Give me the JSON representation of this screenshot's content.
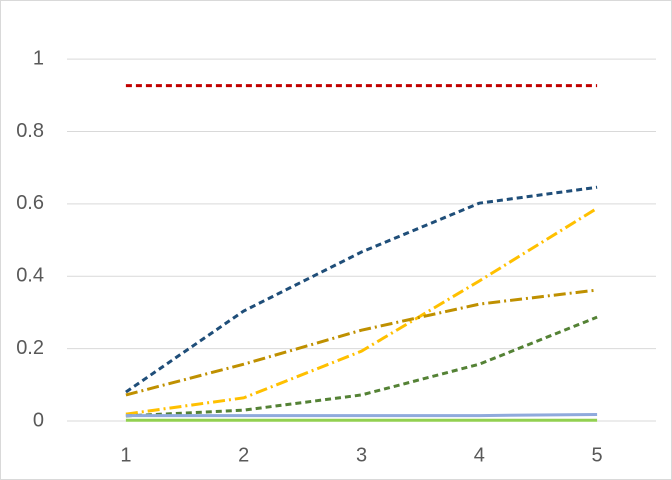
{
  "chart_data": {
    "type": "line",
    "categories": [
      "1",
      "2",
      "3",
      "4",
      "5"
    ],
    "series": [
      {
        "color": "#c00000",
        "dash": "6 4",
        "values": [
          0.927,
          0.927,
          0.927,
          0.927,
          0.927
        ]
      },
      {
        "color": "#1f4e79",
        "dash": "6 4",
        "values": [
          0.08,
          0.304,
          0.467,
          0.602,
          0.646
        ]
      },
      {
        "color": "#ffc000",
        "dash": "12 4 2 4",
        "values": [
          0.019,
          0.064,
          0.193,
          0.387,
          0.588
        ]
      },
      {
        "color": "#bf9000",
        "dash": "12 4 2 4",
        "values": [
          0.072,
          0.157,
          0.251,
          0.323,
          0.362
        ]
      },
      {
        "color": "#548235",
        "dash": "6 4",
        "values": [
          0.014,
          0.03,
          0.072,
          0.157,
          0.287
        ]
      },
      {
        "color": "#8faadc",
        "dash": "none",
        "values": [
          0.015,
          0.015,
          0.015,
          0.015,
          0.018
        ]
      },
      {
        "color": "#92d050",
        "dash": "none",
        "values": [
          0.002,
          0.002,
          0.002,
          0.002,
          0.002
        ]
      }
    ],
    "ylim": [
      0,
      1.1
    ],
    "yticks": [
      0,
      0.2,
      0.4,
      0.6,
      0.8,
      1
    ],
    "grid": true
  }
}
